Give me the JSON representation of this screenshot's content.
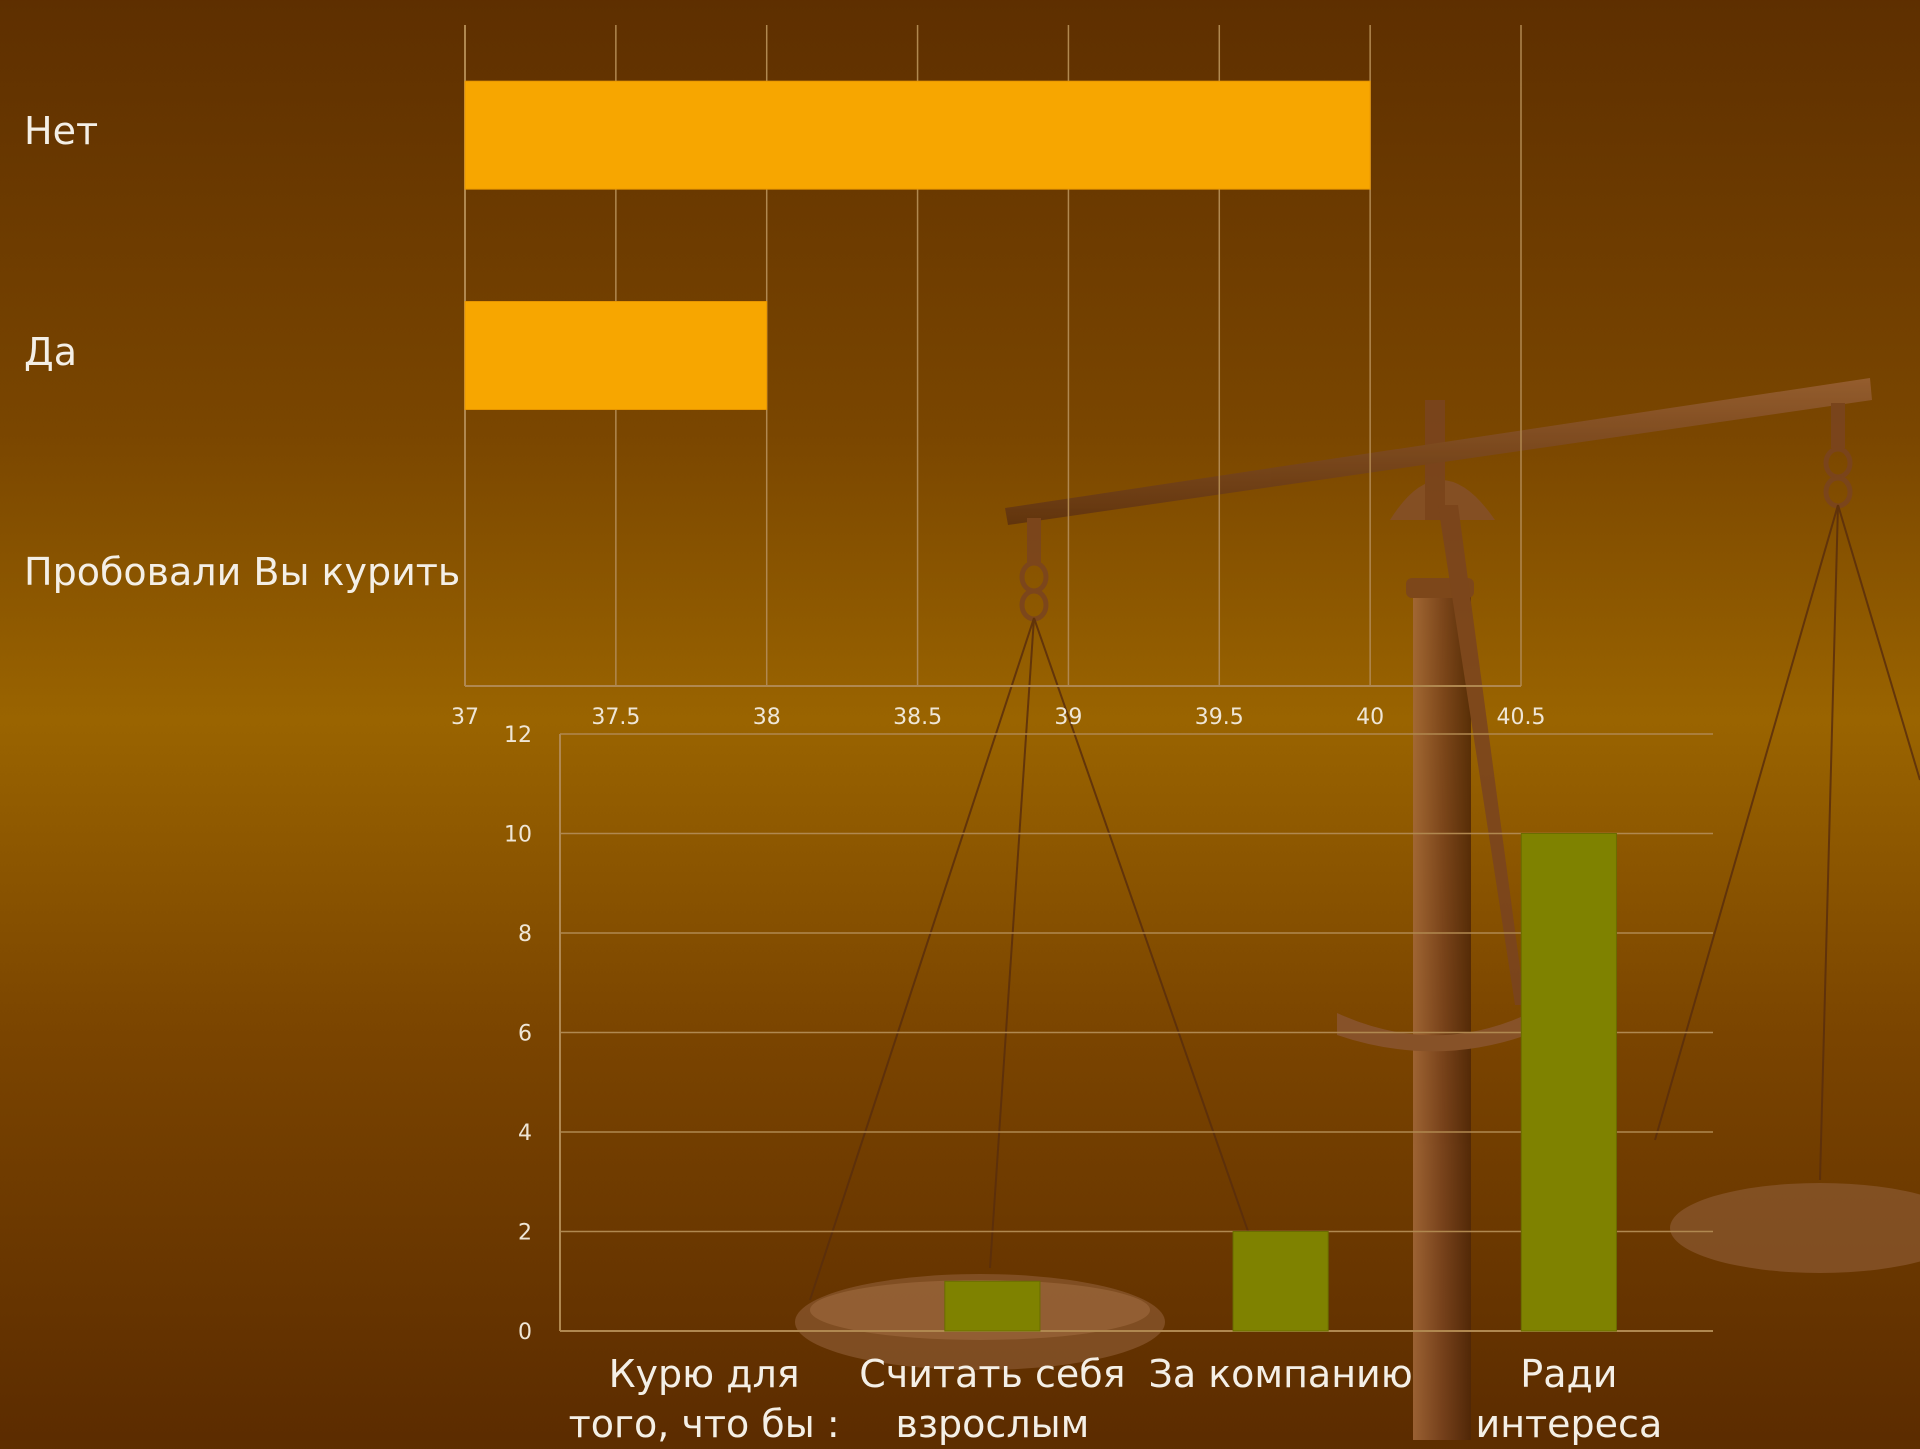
{
  "chart_data": [
    {
      "type": "bar",
      "orientation": "horizontal",
      "categories": [
        "Пробовали Вы курить",
        "Да",
        "Нет"
      ],
      "values": [
        null,
        38,
        40
      ],
      "xlim": [
        37,
        40.5
      ],
      "xticks": [
        "37",
        "37.5",
        "38",
        "38.5",
        "39",
        "39.5",
        "40",
        "40.5"
      ],
      "grid": true,
      "colors": {
        "bar": "#f7a600"
      }
    },
    {
      "type": "bar",
      "orientation": "vertical",
      "categories": [
        "Курю для\nтого, что бы :",
        "Считать себя\nвзрослым",
        "За компанию",
        "Ради интереса"
      ],
      "values": [
        0,
        1,
        2,
        10
      ],
      "ylim": [
        0,
        12
      ],
      "yticks": [
        "0",
        "2",
        "4",
        "6",
        "8",
        "10",
        "12"
      ],
      "grid": true,
      "colors": {
        "bar": "#7f8200"
      }
    }
  ],
  "decoration": {
    "icon": "balance-scale-icon"
  }
}
